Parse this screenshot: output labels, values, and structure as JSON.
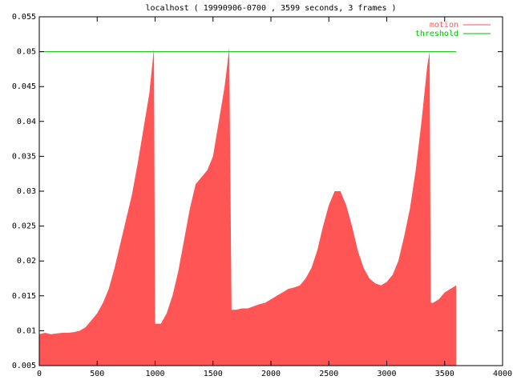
{
  "chart_data": {
    "type": "area",
    "title": "localhost ( 19990906-0700 , 3599 seconds, 3 frames )",
    "xlim": [
      0,
      4000
    ],
    "xticks": [
      0,
      500,
      1000,
      1500,
      2000,
      2500,
      3000,
      3500,
      4000
    ],
    "ylim": [
      0.005,
      0.055
    ],
    "yticks": [
      0.005,
      0.01,
      0.015,
      0.02,
      0.025,
      0.03,
      0.035,
      0.04,
      0.045,
      0.05,
      0.055
    ],
    "legend": "top-right",
    "series": [
      {
        "name": "motion",
        "color": "#ff5555",
        "kind": "area",
        "x": [
          0,
          50,
          100,
          150,
          200,
          250,
          300,
          350,
          400,
          450,
          500,
          550,
          600,
          650,
          700,
          750,
          800,
          850,
          900,
          950,
          990,
          1000,
          1050,
          1100,
          1150,
          1200,
          1250,
          1300,
          1350,
          1400,
          1450,
          1500,
          1550,
          1600,
          1640,
          1660,
          1700,
          1750,
          1800,
          1850,
          1900,
          1950,
          2000,
          2050,
          2100,
          2150,
          2200,
          2250,
          2300,
          2350,
          2400,
          2450,
          2500,
          2550,
          2600,
          2650,
          2700,
          2750,
          2800,
          2850,
          2900,
          2950,
          3000,
          3050,
          3100,
          3150,
          3200,
          3250,
          3300,
          3350,
          3370,
          3380,
          3400,
          3450,
          3500,
          3550,
          3599
        ],
        "values": [
          0.0095,
          0.0097,
          0.0095,
          0.0096,
          0.0097,
          0.0097,
          0.0098,
          0.01,
          0.0105,
          0.0115,
          0.0125,
          0.014,
          0.016,
          0.019,
          0.0225,
          0.026,
          0.0295,
          0.034,
          0.039,
          0.044,
          0.0505,
          0.011,
          0.011,
          0.0125,
          0.015,
          0.0185,
          0.023,
          0.0275,
          0.031,
          0.032,
          0.033,
          0.035,
          0.04,
          0.045,
          0.0505,
          0.013,
          0.013,
          0.0132,
          0.0132,
          0.0135,
          0.0138,
          0.014,
          0.0145,
          0.015,
          0.0155,
          0.016,
          0.0162,
          0.0165,
          0.0175,
          0.019,
          0.0215,
          0.025,
          0.028,
          0.03,
          0.03,
          0.028,
          0.025,
          0.0215,
          0.019,
          0.0175,
          0.0168,
          0.0165,
          0.017,
          0.018,
          0.02,
          0.0235,
          0.0275,
          0.033,
          0.04,
          0.048,
          0.05,
          0.014,
          0.014,
          0.0145,
          0.0155,
          0.016,
          0.0165
        ]
      },
      {
        "name": "threshold",
        "color": "#00c000",
        "kind": "line",
        "x": [
          0,
          3599
        ],
        "values": [
          0.05,
          0.05
        ]
      }
    ]
  }
}
